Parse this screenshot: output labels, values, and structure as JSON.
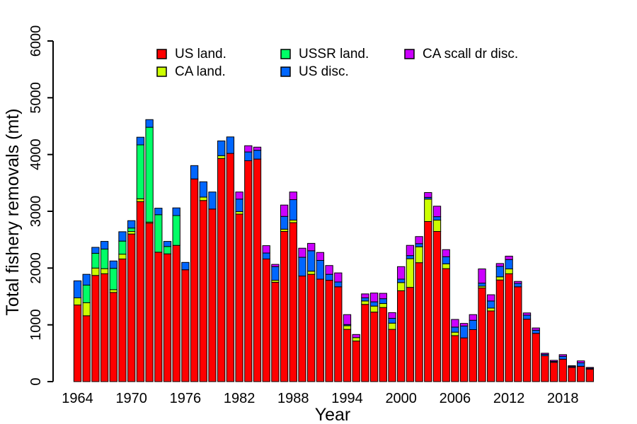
{
  "figure": {
    "background": "#FFFFFF",
    "axis_color": "#000000",
    "bar_border_color": "#000000"
  },
  "chart_data": {
    "type": "bar",
    "stacked": true,
    "title": "",
    "xlabel": "Year",
    "ylabel": "Total fishery removals (mt)",
    "ylim": [
      0,
      6000
    ],
    "yticks": [
      0,
      1000,
      2000,
      3000,
      4000,
      5000,
      6000
    ],
    "xtick_years": [
      1964,
      1970,
      1976,
      1982,
      1988,
      1994,
      2000,
      2006,
      2012,
      2018
    ],
    "grid": false,
    "legend_position": "top-inside",
    "legend_columns": 3,
    "years": [
      1964,
      1965,
      1966,
      1967,
      1968,
      1969,
      1970,
      1971,
      1972,
      1973,
      1974,
      1975,
      1976,
      1977,
      1978,
      1979,
      1980,
      1981,
      1982,
      1983,
      1984,
      1985,
      1986,
      1987,
      1988,
      1989,
      1990,
      1991,
      1992,
      1993,
      1994,
      1995,
      1996,
      1997,
      1998,
      1999,
      2000,
      2001,
      2002,
      2003,
      2004,
      2005,
      2006,
      2007,
      2008,
      2009,
      2010,
      2011,
      2012,
      2013,
      2014,
      2015,
      2016,
      2017,
      2018,
      2019,
      2020,
      2021
    ],
    "series": [
      {
        "name": "US land.",
        "color": "#FF0000",
        "values": [
          1350,
          1160,
          1870,
          1900,
          1570,
          2160,
          2600,
          3170,
          2790,
          2280,
          2250,
          2400,
          1970,
          3570,
          3190,
          3040,
          3930,
          4020,
          2950,
          3890,
          3920,
          2160,
          1750,
          2645,
          2800,
          1860,
          1890,
          1805,
          1785,
          1670,
          920,
          715,
          1360,
          1225,
          1305,
          920,
          1600,
          1660,
          2095,
          2820,
          2645,
          1990,
          810,
          770,
          915,
          1650,
          1245,
          1790,
          1900,
          1670,
          1100,
          850,
          455,
          340,
          395,
          250,
          270,
          220
        ]
      },
      {
        "name": "CA land.",
        "color": "#CCFF00",
        "values": [
          125,
          230,
          130,
          90,
          50,
          85,
          45,
          50,
          20,
          0,
          0,
          0,
          0,
          0,
          60,
          0,
          50,
          0,
          45,
          0,
          0,
          0,
          35,
          40,
          45,
          0,
          55,
          0,
          0,
          0,
          65,
          60,
          60,
          105,
          70,
          110,
          145,
          505,
          280,
          395,
          200,
          85,
          60,
          0,
          0,
          30,
          50,
          55,
          85,
          0,
          0,
          0,
          0,
          0,
          0,
          0,
          0,
          0
        ]
      },
      {
        "name": "USSR land.",
        "color": "#00FF66",
        "values": [
          0,
          310,
          260,
          345,
          375,
          230,
          60,
          950,
          1670,
          660,
          130,
          525,
          0,
          0,
          0,
          0,
          0,
          0,
          0,
          0,
          0,
          0,
          0,
          0,
          0,
          0,
          0,
          0,
          0,
          0,
          0,
          0,
          0,
          0,
          0,
          0,
          0,
          0,
          0,
          0,
          0,
          0,
          0,
          0,
          0,
          0,
          0,
          0,
          0,
          0,
          0,
          0,
          0,
          0,
          0,
          0,
          0,
          0
        ]
      },
      {
        "name": "US disc.",
        "color": "#0066FF",
        "values": [
          300,
          190,
          105,
          135,
          130,
          165,
          130,
          135,
          135,
          115,
          90,
          135,
          130,
          235,
          270,
          300,
          260,
          290,
          220,
          155,
          155,
          105,
          240,
          225,
          360,
          330,
          360,
          330,
          105,
          85,
          20,
          0,
          55,
          75,
          85,
          85,
          60,
          55,
          55,
          30,
          60,
          125,
          90,
          210,
          165,
          55,
          125,
          185,
          165,
          60,
          70,
          55,
          25,
          15,
          50,
          15,
          60,
          15
        ]
      },
      {
        "name": "CA scall dr disc.",
        "color": "#CC00FF",
        "values": [
          0,
          0,
          0,
          0,
          0,
          0,
          0,
          0,
          0,
          0,
          0,
          0,
          0,
          0,
          0,
          0,
          0,
          0,
          125,
          110,
          55,
          130,
          40,
          200,
          135,
          160,
          130,
          140,
          155,
          160,
          175,
          55,
          70,
          155,
          95,
          100,
          220,
          180,
          125,
          85,
          185,
          125,
          135,
          45,
          100,
          250,
          110,
          50,
          60,
          35,
          40,
          40,
          20,
          20,
          30,
          15,
          35,
          15
        ]
      }
    ]
  }
}
